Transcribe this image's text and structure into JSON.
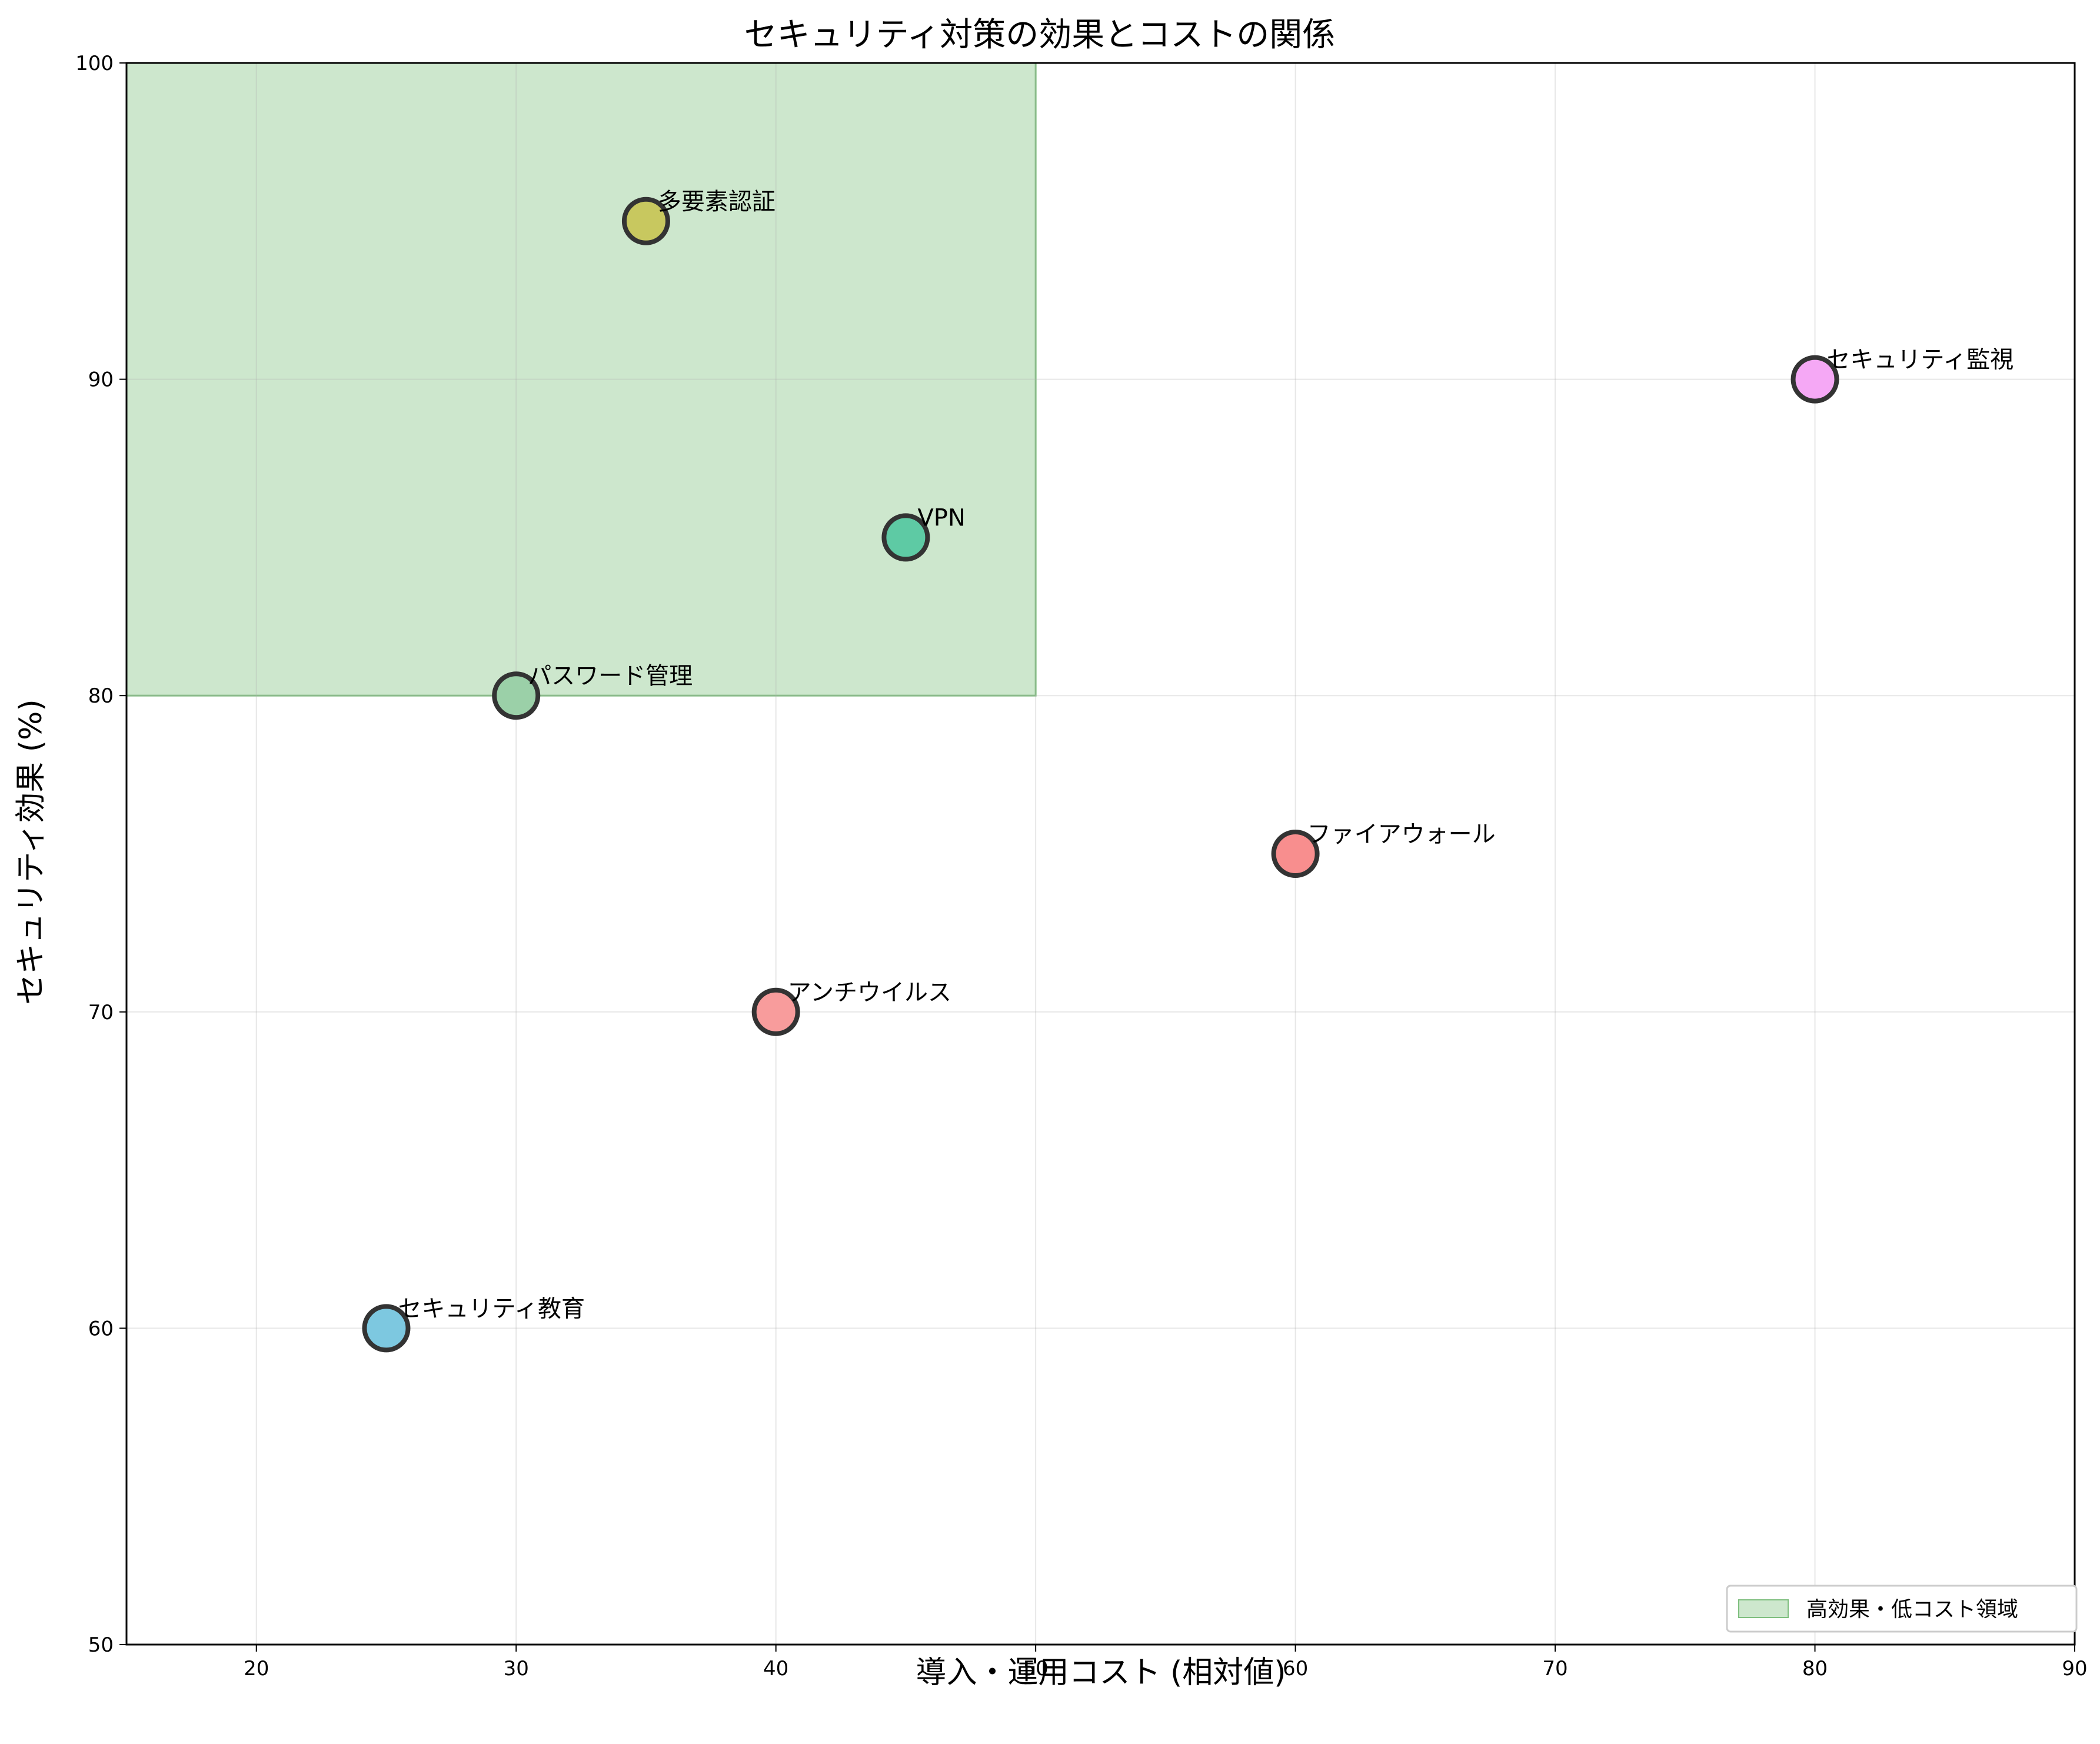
{
  "chart_data": {
    "type": "scatter",
    "title": "セキュリティ対策の効果とコストの関係",
    "xlabel": "導入・運用コスト (相対値)",
    "ylabel": "セキュリティ効果 (%)",
    "xlim": [
      15,
      90
    ],
    "ylim": [
      50,
      100
    ],
    "xticks": [
      20,
      30,
      40,
      50,
      60,
      70,
      80,
      90
    ],
    "yticks": [
      50,
      60,
      70,
      80,
      90,
      100
    ],
    "grid": true,
    "legend_position": "lower-right",
    "points": [
      {
        "label": "多要素認証",
        "x": 35,
        "y": 95,
        "color": "#c8c85f"
      },
      {
        "label": "セキュリティ監視",
        "x": 80,
        "y": 90,
        "color": "#f5a8f5"
      },
      {
        "label": "VPN",
        "x": 45,
        "y": 85,
        "color": "#5ecaa4"
      },
      {
        "label": "パスワード管理",
        "x": 30,
        "y": 80,
        "color": "#9bd0a8"
      },
      {
        "label": "ファイアウォール",
        "x": 60,
        "y": 75,
        "color": "#f88e8e"
      },
      {
        "label": "アンチウイルス",
        "x": 40,
        "y": 70,
        "color": "#f89c9c"
      },
      {
        "label": "セキュリティ教育",
        "x": 25,
        "y": 60,
        "color": "#7dc8e0"
      }
    ],
    "regions": [
      {
        "label": "高効果・低コスト領域",
        "x": [
          15,
          50
        ],
        "y": [
          80,
          100
        ],
        "color": "#a8d5a8"
      }
    ]
  }
}
